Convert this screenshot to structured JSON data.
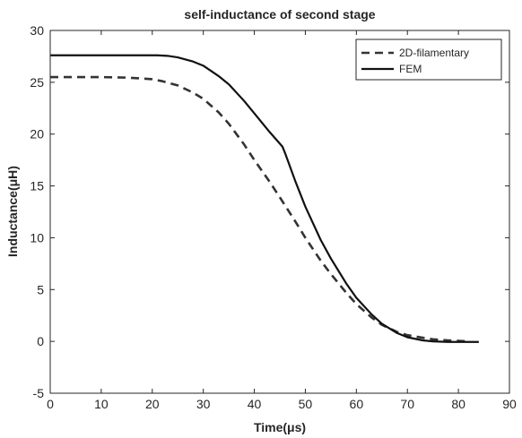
{
  "chart_data": {
    "type": "line",
    "title": "self-inductance of second stage",
    "xlabel": "Time(μs)",
    "ylabel": "Inductance(μH)",
    "xlim": [
      0,
      90
    ],
    "ylim": [
      -5,
      30
    ],
    "xticks": [
      0,
      10,
      20,
      30,
      40,
      50,
      60,
      70,
      80,
      90
    ],
    "yticks": [
      -5,
      0,
      5,
      10,
      15,
      20,
      25,
      30
    ],
    "grid": false,
    "legend_position": "top-right",
    "series": [
      {
        "name": "2D-filamentary",
        "style": "dashed",
        "color": "#333333",
        "x": [
          0,
          5,
          10,
          15,
          20,
          22,
          25,
          28,
          30,
          33,
          35,
          38,
          40,
          43,
          45,
          48,
          50,
          53,
          55,
          58,
          60,
          63,
          65,
          68,
          70,
          73,
          75,
          78,
          80,
          82
        ],
        "y": [
          25.5,
          25.5,
          25.5,
          25.45,
          25.3,
          25.1,
          24.7,
          24.0,
          23.4,
          22.1,
          21.0,
          19.0,
          17.5,
          15.4,
          13.9,
          11.6,
          10.0,
          7.8,
          6.5,
          4.7,
          3.6,
          2.3,
          1.6,
          0.9,
          0.6,
          0.35,
          0.2,
          0.1,
          0.05,
          0.0
        ]
      },
      {
        "name": "FEM",
        "style": "solid",
        "color": "#111111",
        "x": [
          0,
          5,
          10,
          15,
          20,
          21,
          23,
          25,
          28,
          30,
          33,
          35,
          38,
          40,
          43,
          45.5,
          46,
          48,
          50,
          53,
          55,
          58,
          60,
          63,
          65,
          68,
          70,
          73,
          75,
          78,
          80,
          82,
          84
        ],
        "y": [
          27.6,
          27.6,
          27.6,
          27.6,
          27.6,
          27.6,
          27.55,
          27.4,
          27.0,
          26.6,
          25.6,
          24.8,
          23.2,
          22.0,
          20.2,
          18.8,
          18.2,
          15.5,
          13.0,
          9.8,
          8.0,
          5.6,
          4.2,
          2.6,
          1.7,
          0.8,
          0.4,
          0.1,
          0.0,
          -0.05,
          -0.05,
          -0.05,
          -0.05
        ]
      }
    ]
  }
}
